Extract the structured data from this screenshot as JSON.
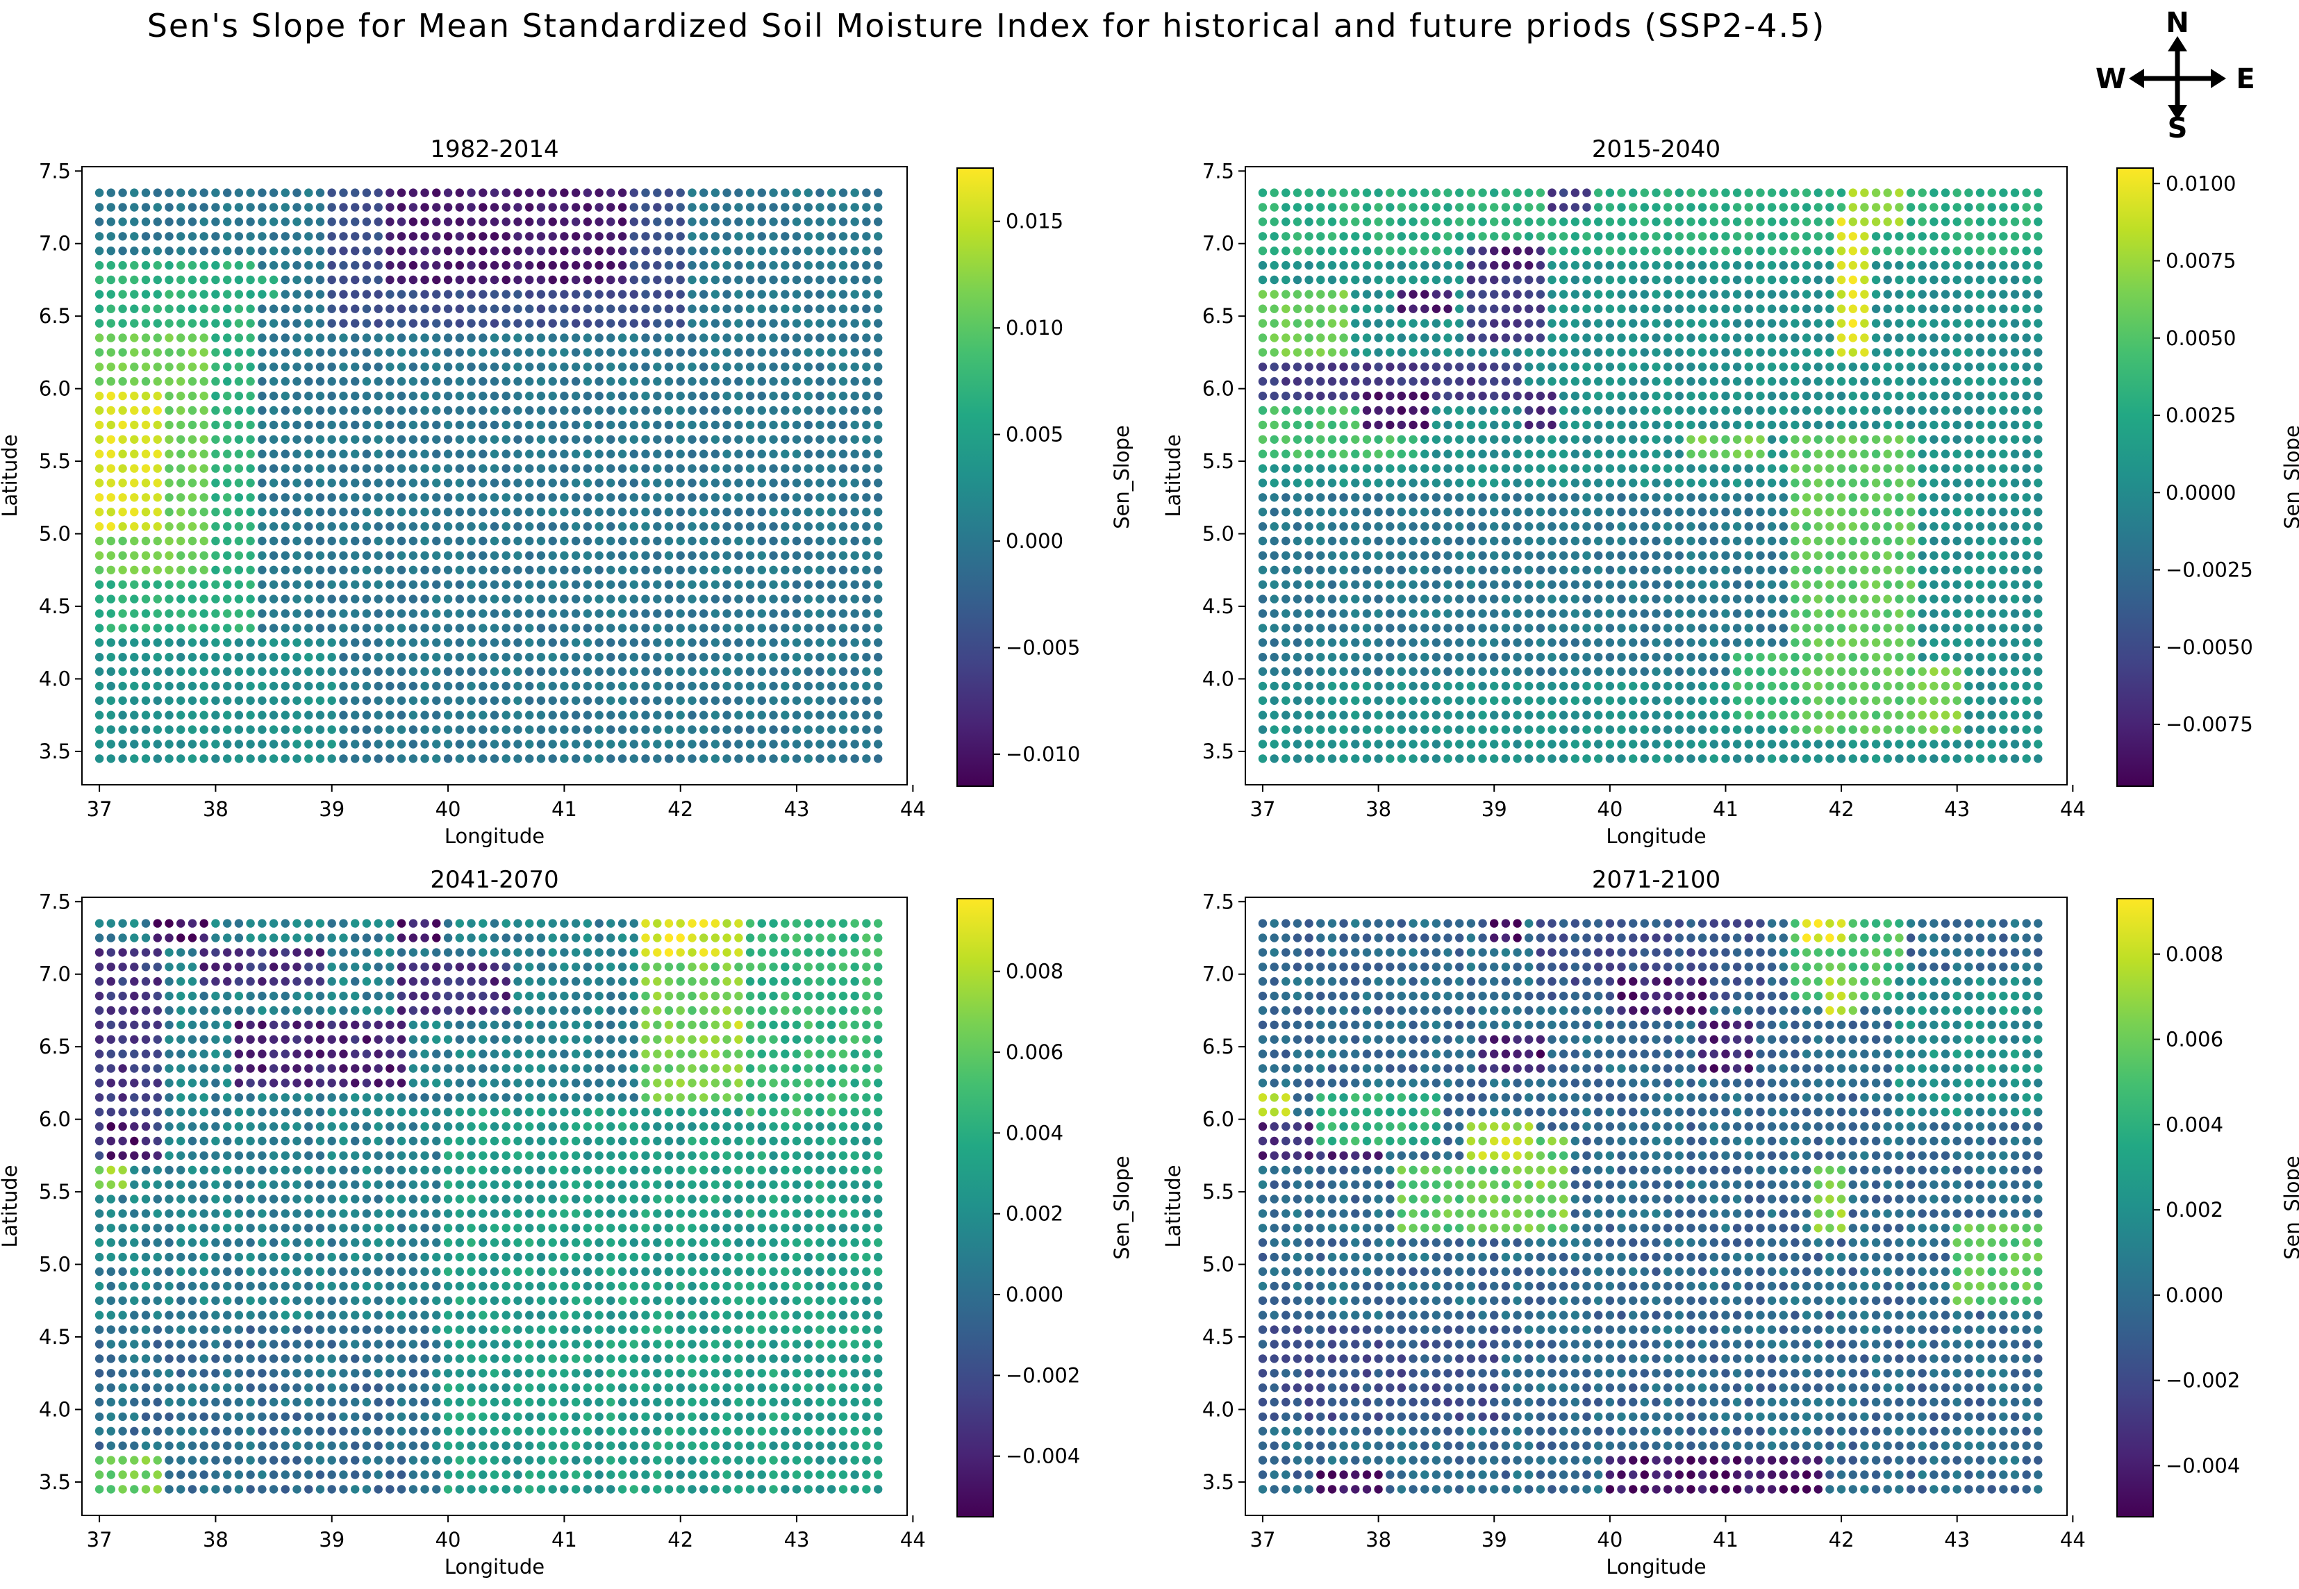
{
  "figure": {
    "title": "Sen's Slope for Mean Standardized Soil Moisture Index for historical and future priods (SSP2-4.5)",
    "compass": {
      "north": "N",
      "south": "S",
      "east": "E",
      "west": "W"
    }
  },
  "colormap": "viridis",
  "chart_data": [
    {
      "type": "scatter",
      "title": "1982-2014",
      "xlabel": "Longitude",
      "ylabel": "Latitude",
      "colorbar_label": "Sen_Slope",
      "xlim": [
        36.85,
        43.95
      ],
      "ylim": [
        3.27,
        7.53
      ],
      "xticks": [
        37,
        38,
        39,
        40,
        41,
        42,
        43,
        44
      ],
      "xtick_labels": [
        "37",
        "38",
        "39",
        "40",
        "41",
        "42",
        "43",
        "44"
      ],
      "yticks": [
        3.5,
        4.0,
        4.5,
        5.0,
        5.5,
        6.0,
        6.5,
        7.0,
        7.5
      ],
      "ytick_labels": [
        "3.5",
        "4.0",
        "4.5",
        "5.0",
        "5.5",
        "6.0",
        "6.5",
        "7.0",
        "7.5"
      ],
      "grid": {
        "lon_start": 37.0,
        "lon_step": 0.1,
        "lon_count": 68,
        "lat_start": 3.45,
        "lat_step": 0.1,
        "lat_count": 40
      },
      "color_range": [
        -0.0115,
        0.0175
      ],
      "colorbar_ticks": [
        -0.01,
        -0.005,
        0.0,
        0.005,
        0.01,
        0.015
      ],
      "colorbar_tick_labels": [
        "−0.010",
        "−0.005",
        "0.000",
        "0.005",
        "0.010",
        "0.015"
      ],
      "base_value": 0.0,
      "noise": 0.0012,
      "regions": [
        {
          "lon": [
            37.0,
            38.3
          ],
          "lat": [
            4.3,
            6.9
          ],
          "value": 0.007
        },
        {
          "lon": [
            37.0,
            37.9
          ],
          "lat": [
            4.7,
            6.4
          ],
          "value": 0.011
        },
        {
          "lon": [
            37.0,
            37.5
          ],
          "lat": [
            5.05,
            6.0
          ],
          "value": 0.016
        },
        {
          "lon": [
            38.0,
            38.5
          ],
          "lat": [
            6.6,
            6.8
          ],
          "value": 0.006
        },
        {
          "lon": [
            39.0,
            42.0
          ],
          "lat": [
            6.4,
            7.4
          ],
          "value": -0.0045
        },
        {
          "lon": [
            39.5,
            41.5
          ],
          "lat": [
            6.75,
            7.4
          ],
          "value": -0.0095
        },
        {
          "lon": [
            37.0,
            39.0
          ],
          "lat": [
            3.4,
            4.3
          ],
          "value": 0.003
        }
      ]
    },
    {
      "type": "scatter",
      "title": "2015-2040",
      "xlabel": "Longitude",
      "ylabel": "Latitude",
      "colorbar_label": "Sen_Slope",
      "xlim": [
        36.85,
        43.95
      ],
      "ylim": [
        3.27,
        7.53
      ],
      "xticks": [
        37,
        38,
        39,
        40,
        41,
        42,
        43,
        44
      ],
      "xtick_labels": [
        "37",
        "38",
        "39",
        "40",
        "41",
        "42",
        "43",
        "44"
      ],
      "yticks": [
        3.5,
        4.0,
        4.5,
        5.0,
        5.5,
        6.0,
        6.5,
        7.0,
        7.5
      ],
      "ytick_labels": [
        "3.5",
        "4.0",
        "4.5",
        "5.0",
        "5.5",
        "6.0",
        "6.5",
        "7.0",
        "7.5"
      ],
      "grid": {
        "lon_start": 37.0,
        "lon_step": 0.1,
        "lon_count": 68,
        "lat_start": 3.45,
        "lat_step": 0.1,
        "lat_count": 40
      },
      "color_range": [
        -0.0095,
        0.0105
      ],
      "colorbar_ticks": [
        -0.0075,
        -0.005,
        -0.0025,
        0.0,
        0.0025,
        0.005,
        0.0075,
        0.01
      ],
      "colorbar_tick_labels": [
        "−0.0075",
        "−0.0050",
        "−0.0025",
        "0.0000",
        "0.0025",
        "0.0050",
        "0.0075",
        "0.0100"
      ],
      "base_value": 0.0005,
      "noise": 0.001,
      "regions": [
        {
          "lon": [
            37.0,
            43.8
          ],
          "lat": [
            6.9,
            7.4
          ],
          "value": 0.003
        },
        {
          "lon": [
            37.0,
            37.7
          ],
          "lat": [
            6.2,
            6.7
          ],
          "value": 0.006
        },
        {
          "lon": [
            37.0,
            38.3
          ],
          "lat": [
            5.5,
            6.0
          ],
          "value": 0.0045
        },
        {
          "lon": [
            37.0,
            39.2
          ],
          "lat": [
            5.9,
            6.15
          ],
          "value": -0.006
        },
        {
          "lon": [
            37.9,
            38.4
          ],
          "lat": [
            5.7,
            6.0
          ],
          "value": -0.0085
        },
        {
          "lon": [
            38.2,
            38.6
          ],
          "lat": [
            6.5,
            6.7
          ],
          "value": -0.008
        },
        {
          "lon": [
            38.8,
            39.4
          ],
          "lat": [
            6.3,
            7.0
          ],
          "value": -0.006
        },
        {
          "lon": [
            39.0,
            39.3
          ],
          "lat": [
            6.85,
            7.0
          ],
          "value": -0.008
        },
        {
          "lon": [
            39.3,
            39.5
          ],
          "lat": [
            5.7,
            6.0
          ],
          "value": -0.007
        },
        {
          "lon": [
            39.5,
            39.8
          ],
          "lat": [
            7.25,
            7.4
          ],
          "value": -0.006
        },
        {
          "lon": [
            37.0,
            41.5
          ],
          "lat": [
            4.0,
            5.3
          ],
          "value": -0.0015
        },
        {
          "lon": [
            40.7,
            41.3
          ],
          "lat": [
            5.55,
            5.7
          ],
          "value": 0.006
        },
        {
          "lon": [
            41.6,
            42.6
          ],
          "lat": [
            3.6,
            5.7
          ],
          "value": 0.0055
        },
        {
          "lon": [
            42.0,
            42.2
          ],
          "lat": [
            6.2,
            7.2
          ],
          "value": 0.0095
        },
        {
          "lon": [
            42.1,
            42.5
          ],
          "lat": [
            7.15,
            7.4
          ],
          "value": 0.0075
        },
        {
          "lon": [
            42.7,
            43.0
          ],
          "lat": [
            3.6,
            4.1
          ],
          "value": 0.0065
        },
        {
          "lon": [
            41.1,
            41.6
          ],
          "lat": [
            3.7,
            4.2
          ],
          "value": 0.004
        }
      ]
    },
    {
      "type": "scatter",
      "title": "2041-2070",
      "xlabel": "Longitude",
      "ylabel": "Latitude",
      "colorbar_label": "Sen_Slope",
      "xlim": [
        36.85,
        43.95
      ],
      "ylim": [
        3.27,
        7.53
      ],
      "xticks": [
        37,
        38,
        39,
        40,
        41,
        42,
        43,
        44
      ],
      "xtick_labels": [
        "37",
        "38",
        "39",
        "40",
        "41",
        "42",
        "43",
        "44"
      ],
      "yticks": [
        3.5,
        4.0,
        4.5,
        5.0,
        5.5,
        6.0,
        6.5,
        7.0,
        7.5
      ],
      "ytick_labels": [
        "3.5",
        "4.0",
        "4.5",
        "5.0",
        "5.5",
        "6.0",
        "6.5",
        "7.0",
        "7.5"
      ],
      "grid": {
        "lon_start": 37.0,
        "lon_step": 0.1,
        "lon_count": 68,
        "lat_start": 3.45,
        "lat_step": 0.1,
        "lat_count": 40
      },
      "color_range": [
        -0.0055,
        0.0098
      ],
      "colorbar_ticks": [
        -0.004,
        -0.002,
        0.0,
        0.002,
        0.004,
        0.006,
        0.008
      ],
      "colorbar_tick_labels": [
        "−0.004",
        "−0.002",
        "0.000",
        "0.002",
        "0.004",
        "0.006",
        "0.008"
      ],
      "base_value": 0.0012,
      "noise": 0.0012,
      "regions": [
        {
          "lon": [
            40.0,
            43.8
          ],
          "lat": [
            3.4,
            6.1
          ],
          "value": 0.003
        },
        {
          "lon": [
            37.0,
            39.8
          ],
          "lat": [
            3.4,
            4.6
          ],
          "value": 0.0
        },
        {
          "lon": [
            37.0,
            37.5
          ],
          "lat": [
            5.7,
            7.2
          ],
          "value": -0.003
        },
        {
          "lon": [
            37.1,
            37.4
          ],
          "lat": [
            5.7,
            6.0
          ],
          "value": -0.0045
        },
        {
          "lon": [
            37.5,
            37.9
          ],
          "lat": [
            7.2,
            7.4
          ],
          "value": -0.005
        },
        {
          "lon": [
            37.9,
            38.9
          ],
          "lat": [
            6.95,
            7.2
          ],
          "value": -0.0035
        },
        {
          "lon": [
            38.2,
            39.6
          ],
          "lat": [
            6.2,
            6.7
          ],
          "value": -0.004
        },
        {
          "lon": [
            39.6,
            40.5
          ],
          "lat": [
            6.7,
            7.1
          ],
          "value": -0.0035
        },
        {
          "lon": [
            39.6,
            39.9
          ],
          "lat": [
            7.25,
            7.4
          ],
          "value": -0.0045
        },
        {
          "lon": [
            37.0,
            37.2
          ],
          "lat": [
            5.5,
            5.7
          ],
          "value": 0.007
        },
        {
          "lon": [
            37.0,
            37.5
          ],
          "lat": [
            3.4,
            3.7
          ],
          "value": 0.0065
        },
        {
          "lon": [
            41.7,
            42.6
          ],
          "lat": [
            6.1,
            7.4
          ],
          "value": 0.0065
        },
        {
          "lon": [
            41.7,
            42.5
          ],
          "lat": [
            7.15,
            7.4
          ],
          "value": 0.009
        },
        {
          "lon": [
            42.5,
            42.7
          ],
          "lat": [
            6.5,
            6.7
          ],
          "value": 0.0085
        },
        {
          "lon": [
            42.6,
            43.8
          ],
          "lat": [
            6.0,
            7.4
          ],
          "value": 0.0045
        }
      ]
    },
    {
      "type": "scatter",
      "title": "2071-2100",
      "xlabel": "Longitude",
      "ylabel": "Latitude",
      "colorbar_label": "Sen_Slope",
      "xlim": [
        36.85,
        43.95
      ],
      "ylim": [
        3.27,
        7.53
      ],
      "xticks": [
        37,
        38,
        39,
        40,
        41,
        42,
        43,
        44
      ],
      "xtick_labels": [
        "37",
        "38",
        "39",
        "40",
        "41",
        "42",
        "43",
        "44"
      ],
      "yticks": [
        3.5,
        4.0,
        4.5,
        5.0,
        5.5,
        6.0,
        6.5,
        7.0,
        7.5
      ],
      "ytick_labels": [
        "3.5",
        "4.0",
        "4.5",
        "5.0",
        "5.5",
        "6.0",
        "6.5",
        "7.0",
        "7.5"
      ],
      "grid": {
        "lon_start": 37.0,
        "lon_step": 0.1,
        "lon_count": 68,
        "lat_start": 3.45,
        "lat_step": 0.1,
        "lat_count": 40
      },
      "color_range": [
        -0.0052,
        0.0093
      ],
      "colorbar_ticks": [
        -0.004,
        -0.002,
        0.0,
        0.002,
        0.004,
        0.006,
        0.008
      ],
      "colorbar_tick_labels": [
        "−0.004",
        "−0.002",
        "0.000",
        "0.002",
        "0.004",
        "0.006",
        "0.008"
      ],
      "base_value": -0.0002,
      "noise": 0.0012,
      "regions": [
        {
          "lon": [
            37.0,
            38.0
          ],
          "lat": [
            5.7,
            6.0
          ],
          "value": -0.0035
        },
        {
          "lon": [
            37.0,
            37.2
          ],
          "lat": [
            6.05,
            6.2
          ],
          "value": 0.0085
        },
        {
          "lon": [
            37.5,
            38.5
          ],
          "lat": [
            5.8,
            6.2
          ],
          "value": 0.004
        },
        {
          "lon": [
            38.2,
            38.7
          ],
          "lat": [
            5.2,
            5.7
          ],
          "value": 0.0055
        },
        {
          "lon": [
            38.8,
            39.6
          ],
          "lat": [
            5.2,
            5.9
          ],
          "value": 0.006
        },
        {
          "lon": [
            38.8,
            39.3
          ],
          "lat": [
            5.75,
            5.95
          ],
          "value": 0.0075
        },
        {
          "lon": [
            38.9,
            39.4
          ],
          "lat": [
            6.3,
            6.6
          ],
          "value": -0.004
        },
        {
          "lon": [
            39.4,
            41.3
          ],
          "lat": [
            6.8,
            7.4
          ],
          "value": -0.0015
        },
        {
          "lon": [
            40.1,
            40.8
          ],
          "lat": [
            6.7,
            7.0
          ],
          "value": -0.004
        },
        {
          "lon": [
            40.8,
            41.2
          ],
          "lat": [
            6.3,
            6.7
          ],
          "value": -0.004
        },
        {
          "lon": [
            39.0,
            39.2
          ],
          "lat": [
            7.25,
            7.4
          ],
          "value": -0.0048
        },
        {
          "lon": [
            41.6,
            42.5
          ],
          "lat": [
            6.8,
            7.4
          ],
          "value": 0.005
        },
        {
          "lon": [
            41.7,
            42.0
          ],
          "lat": [
            7.25,
            7.4
          ],
          "value": 0.009
        },
        {
          "lon": [
            41.9,
            42.1
          ],
          "lat": [
            6.75,
            7.0
          ],
          "value": 0.0075
        },
        {
          "lon": [
            41.8,
            42.0
          ],
          "lat": [
            5.2,
            5.7
          ],
          "value": 0.0065
        },
        {
          "lon": [
            43.0,
            43.8
          ],
          "lat": [
            4.7,
            5.3
          ],
          "value": 0.0055
        },
        {
          "lon": [
            40.0,
            41.8
          ],
          "lat": [
            3.4,
            3.7
          ],
          "value": -0.0045
        },
        {
          "lon": [
            37.5,
            38.0
          ],
          "lat": [
            3.4,
            3.6
          ],
          "value": -0.005
        },
        {
          "lon": [
            42.5,
            43.8
          ],
          "lat": [
            6.0,
            7.0
          ],
          "value": 0.002
        },
        {
          "lon": [
            37.0,
            39.0
          ],
          "lat": [
            3.9,
            4.6
          ],
          "value": -0.0015
        }
      ]
    }
  ]
}
